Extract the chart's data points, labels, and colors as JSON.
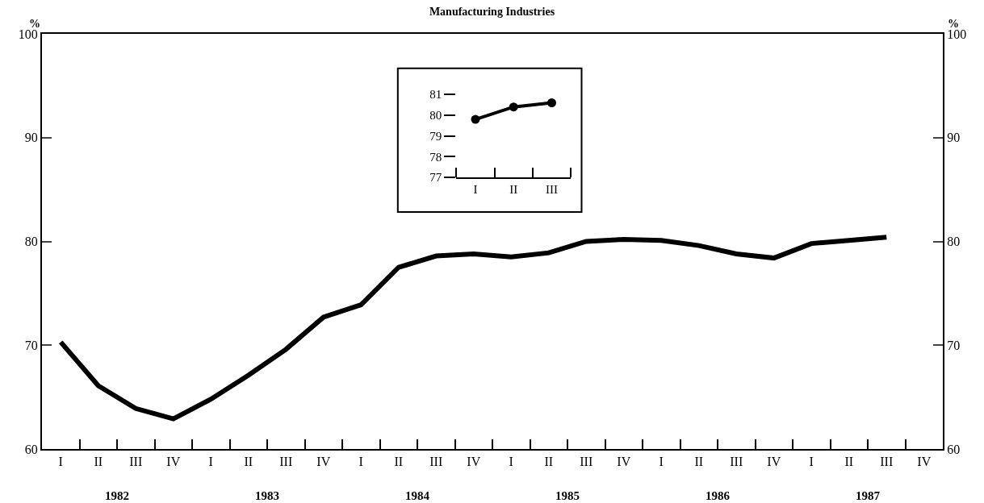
{
  "chart_data": [
    {
      "type": "line",
      "title": "Manufacturing Industries",
      "ylabel": "%",
      "y2label": "%",
      "categories": [
        "I",
        "II",
        "III",
        "IV",
        "I",
        "II",
        "III",
        "IV",
        "I",
        "II",
        "III",
        "IV",
        "I",
        "II",
        "III",
        "IV",
        "I",
        "II",
        "III",
        "IV",
        "I",
        "II",
        "III",
        "IV"
      ],
      "annotations": [
        "1982",
        "1983",
        "1984",
        "1985",
        "1986",
        "1987"
      ],
      "series": [
        {
          "color": "#000000",
          "values": [
            70.3,
            66.1,
            63.9,
            62.9,
            64.8,
            67.1,
            69.6,
            72.7,
            73.9,
            77.5,
            78.6,
            78.8,
            78.5,
            78.9,
            80.0,
            80.2,
            80.1,
            79.6,
            78.8,
            78.4,
            79.8,
            80.1,
            80.4,
            null
          ]
        }
      ],
      "ylim": [
        60,
        100
      ],
      "yticks": [
        60,
        70,
        80,
        90,
        100
      ],
      "y2lim": [
        60,
        100
      ],
      "y2ticks": [
        60,
        70,
        80,
        90,
        100
      ],
      "marker": "none",
      "line_style": "solid"
    },
    {
      "type": "line",
      "categories": [
        "I",
        "II",
        "III"
      ],
      "series": [
        {
          "color": "#000000",
          "values": [
            79.8,
            80.4,
            80.6
          ]
        }
      ],
      "ylim": [
        77,
        81
      ],
      "yticks": [
        77,
        78,
        79,
        80,
        81
      ],
      "marker": "circle",
      "line_style": "solid"
    }
  ]
}
